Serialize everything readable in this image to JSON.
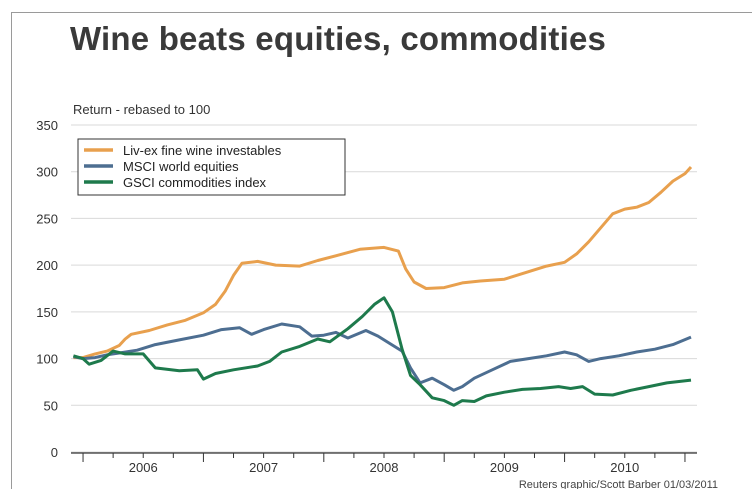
{
  "chart_data": {
    "type": "line",
    "title": "Wine beats equities, commodities",
    "ylabel": "Return - rebased to 100",
    "xlabel": "",
    "ylim": [
      0,
      350
    ],
    "yticks": [
      0,
      50,
      100,
      150,
      200,
      250,
      300,
      350
    ],
    "xlim": [
      2005.9,
      2011.1
    ],
    "xticks": [
      {
        "label": "2006",
        "x": 2006.5
      },
      {
        "label": "2007",
        "x": 2007.5
      },
      {
        "label": "2008",
        "x": 2008.5
      },
      {
        "label": "2009",
        "x": 2009.5
      },
      {
        "label": "2010",
        "x": 2010.5
      }
    ],
    "year_boundaries": [
      2006,
      2007,
      2008,
      2009,
      2010,
      2011
    ],
    "grid": true,
    "legend_position": "top-left",
    "credit": "Reuters graphic/Scott Barber 01/03/2011",
    "series": [
      {
        "name": "Liv-ex fine wine investables",
        "color": "#e8a04e",
        "points": [
          [
            2005.92,
            101
          ],
          [
            2006.0,
            101
          ],
          [
            2006.1,
            105
          ],
          [
            2006.2,
            108
          ],
          [
            2006.3,
            114
          ],
          [
            2006.35,
            121
          ],
          [
            2006.4,
            126
          ],
          [
            2006.55,
            130
          ],
          [
            2006.7,
            136
          ],
          [
            2006.85,
            141
          ],
          [
            2007.0,
            149
          ],
          [
            2007.1,
            158
          ],
          [
            2007.18,
            172
          ],
          [
            2007.25,
            189
          ],
          [
            2007.32,
            202
          ],
          [
            2007.45,
            204
          ],
          [
            2007.6,
            200
          ],
          [
            2007.8,
            199
          ],
          [
            2007.95,
            205
          ],
          [
            2008.1,
            210
          ],
          [
            2008.3,
            217
          ],
          [
            2008.5,
            219
          ],
          [
            2008.62,
            215
          ],
          [
            2008.68,
            196
          ],
          [
            2008.75,
            182
          ],
          [
            2008.85,
            175
          ],
          [
            2009.0,
            176
          ],
          [
            2009.15,
            181
          ],
          [
            2009.3,
            183
          ],
          [
            2009.5,
            185
          ],
          [
            2009.7,
            193
          ],
          [
            2009.85,
            199
          ],
          [
            2010.0,
            203
          ],
          [
            2010.1,
            212
          ],
          [
            2010.2,
            225
          ],
          [
            2010.3,
            240
          ],
          [
            2010.4,
            255
          ],
          [
            2010.5,
            260
          ],
          [
            2010.6,
            262
          ],
          [
            2010.7,
            267
          ],
          [
            2010.8,
            278
          ],
          [
            2010.9,
            290
          ],
          [
            2011.0,
            298
          ],
          [
            2011.05,
            305
          ]
        ]
      },
      {
        "name": "MSCI world equities",
        "color": "#4d6e91",
        "points": [
          [
            2005.92,
            102
          ],
          [
            2006.0,
            100
          ],
          [
            2006.1,
            101
          ],
          [
            2006.2,
            104
          ],
          [
            2006.3,
            106
          ],
          [
            2006.45,
            109
          ],
          [
            2006.6,
            115
          ],
          [
            2006.8,
            120
          ],
          [
            2007.0,
            125
          ],
          [
            2007.15,
            131
          ],
          [
            2007.3,
            133
          ],
          [
            2007.4,
            126
          ],
          [
            2007.5,
            131
          ],
          [
            2007.65,
            137
          ],
          [
            2007.8,
            134
          ],
          [
            2007.9,
            124
          ],
          [
            2008.0,
            125
          ],
          [
            2008.1,
            128
          ],
          [
            2008.2,
            122
          ],
          [
            2008.35,
            130
          ],
          [
            2008.45,
            124
          ],
          [
            2008.55,
            116
          ],
          [
            2008.65,
            108
          ],
          [
            2008.72,
            90
          ],
          [
            2008.8,
            74
          ],
          [
            2008.9,
            79
          ],
          [
            2009.0,
            72
          ],
          [
            2009.08,
            66
          ],
          [
            2009.15,
            70
          ],
          [
            2009.25,
            79
          ],
          [
            2009.4,
            88
          ],
          [
            2009.55,
            97
          ],
          [
            2009.7,
            100
          ],
          [
            2009.85,
            103
          ],
          [
            2010.0,
            107
          ],
          [
            2010.1,
            104
          ],
          [
            2010.2,
            97
          ],
          [
            2010.3,
            100
          ],
          [
            2010.45,
            103
          ],
          [
            2010.6,
            107
          ],
          [
            2010.75,
            110
          ],
          [
            2010.9,
            115
          ],
          [
            2011.05,
            123
          ]
        ]
      },
      {
        "name": "GSCI commodities index",
        "color": "#1e7a4c",
        "points": [
          [
            2005.92,
            103
          ],
          [
            2006.0,
            100
          ],
          [
            2006.05,
            94
          ],
          [
            2006.15,
            98
          ],
          [
            2006.25,
            108
          ],
          [
            2006.35,
            105
          ],
          [
            2006.5,
            105
          ],
          [
            2006.6,
            90
          ],
          [
            2006.8,
            87
          ],
          [
            2006.95,
            88
          ],
          [
            2007.0,
            78
          ],
          [
            2007.1,
            84
          ],
          [
            2007.25,
            88
          ],
          [
            2007.45,
            92
          ],
          [
            2007.55,
            97
          ],
          [
            2007.65,
            107
          ],
          [
            2007.8,
            113
          ],
          [
            2007.95,
            121
          ],
          [
            2008.05,
            118
          ],
          [
            2008.2,
            132
          ],
          [
            2008.32,
            145
          ],
          [
            2008.42,
            158
          ],
          [
            2008.5,
            165
          ],
          [
            2008.57,
            150
          ],
          [
            2008.65,
            110
          ],
          [
            2008.72,
            82
          ],
          [
            2008.8,
            72
          ],
          [
            2008.9,
            58
          ],
          [
            2009.0,
            55
          ],
          [
            2009.08,
            50
          ],
          [
            2009.15,
            55
          ],
          [
            2009.25,
            54
          ],
          [
            2009.35,
            60
          ],
          [
            2009.5,
            64
          ],
          [
            2009.65,
            67
          ],
          [
            2009.8,
            68
          ],
          [
            2009.95,
            70
          ],
          [
            2010.05,
            68
          ],
          [
            2010.15,
            70
          ],
          [
            2010.25,
            62
          ],
          [
            2010.4,
            61
          ],
          [
            2010.55,
            66
          ],
          [
            2010.7,
            70
          ],
          [
            2010.85,
            74
          ],
          [
            2011.05,
            77
          ]
        ]
      }
    ]
  }
}
